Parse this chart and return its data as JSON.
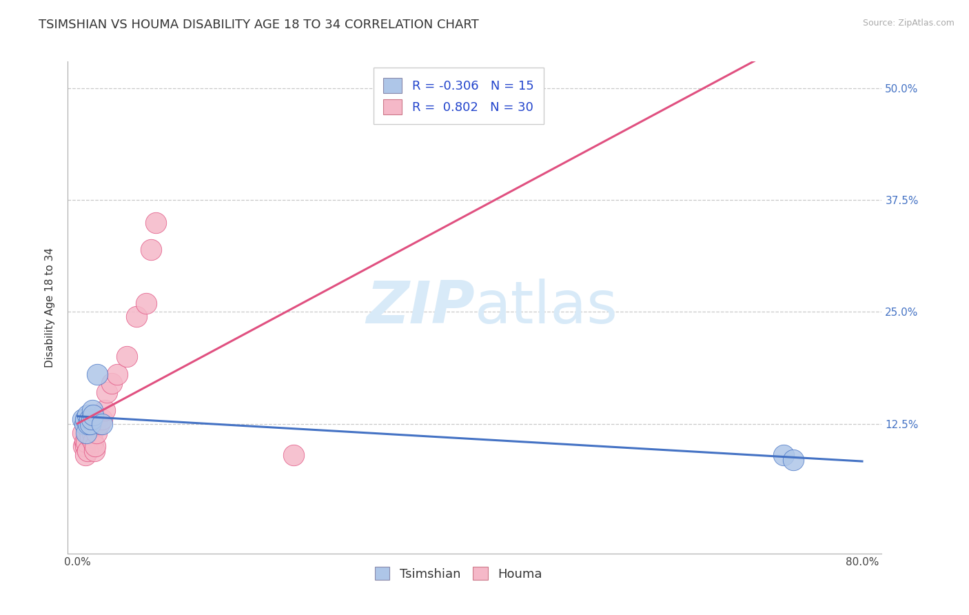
{
  "title": "TSIMSHIAN VS HOUMA DISABILITY AGE 18 TO 34 CORRELATION CHART",
  "source": "Source: ZipAtlas.com",
  "ylabel": "Disability Age 18 to 34",
  "xlim": [
    -0.01,
    0.82
  ],
  "ylim": [
    -0.02,
    0.53
  ],
  "xticks": [
    0.0,
    0.1,
    0.2,
    0.3,
    0.4,
    0.5,
    0.6,
    0.7,
    0.8
  ],
  "yticks": [
    0.125,
    0.25,
    0.375,
    0.5
  ],
  "legend_r_tsimshian": "-0.306",
  "legend_n_tsimshian": "15",
  "legend_r_houma": "0.802",
  "legend_n_houma": "30",
  "tsimshian_color": "#aec6e8",
  "houma_color": "#f5b8c8",
  "tsimshian_line_color": "#4472c4",
  "houma_line_color": "#e05080",
  "background_color": "#ffffff",
  "grid_color": "#c8c8c8",
  "watermark_color": "#d8eaf8",
  "tsimshian_x": [
    0.005,
    0.007,
    0.008,
    0.009,
    0.01,
    0.011,
    0.012,
    0.013,
    0.014,
    0.015,
    0.016,
    0.02,
    0.025,
    0.72,
    0.73
  ],
  "tsimshian_y": [
    0.13,
    0.125,
    0.13,
    0.115,
    0.135,
    0.125,
    0.13,
    0.125,
    0.13,
    0.14,
    0.135,
    0.18,
    0.125,
    0.09,
    0.085
  ],
  "houma_x": [
    0.005,
    0.006,
    0.007,
    0.008,
    0.008,
    0.009,
    0.01,
    0.01,
    0.011,
    0.012,
    0.013,
    0.014,
    0.015,
    0.016,
    0.017,
    0.018,
    0.019,
    0.02,
    0.022,
    0.025,
    0.028,
    0.03,
    0.035,
    0.04,
    0.05,
    0.06,
    0.07,
    0.075,
    0.08,
    0.22
  ],
  "houma_y": [
    0.115,
    0.1,
    0.105,
    0.1,
    0.09,
    0.105,
    0.095,
    0.115,
    0.12,
    0.115,
    0.11,
    0.12,
    0.115,
    0.105,
    0.095,
    0.1,
    0.115,
    0.13,
    0.125,
    0.13,
    0.14,
    0.16,
    0.17,
    0.18,
    0.2,
    0.245,
    0.26,
    0.32,
    0.35,
    0.09
  ],
  "title_fontsize": 13,
  "axis_label_fontsize": 11,
  "tick_fontsize": 11,
  "legend_fontsize": 13,
  "marker_size": 480
}
